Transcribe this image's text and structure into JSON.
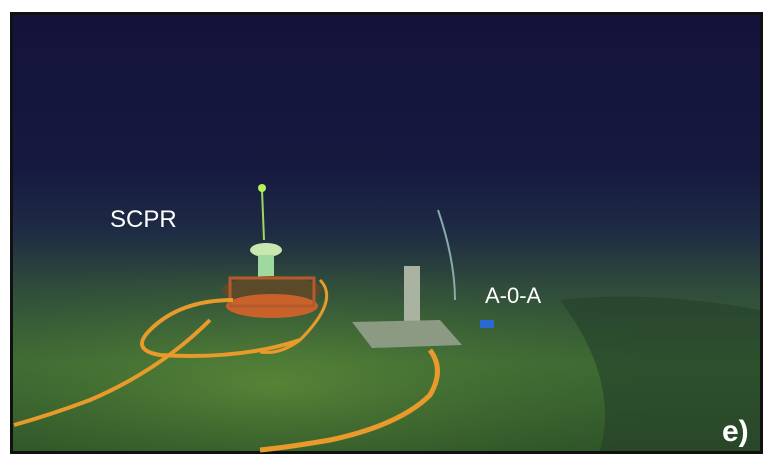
{
  "labels": {
    "left_instrument": "SCPR",
    "right_instrument": "A-0-A",
    "panel": "e)"
  }
}
